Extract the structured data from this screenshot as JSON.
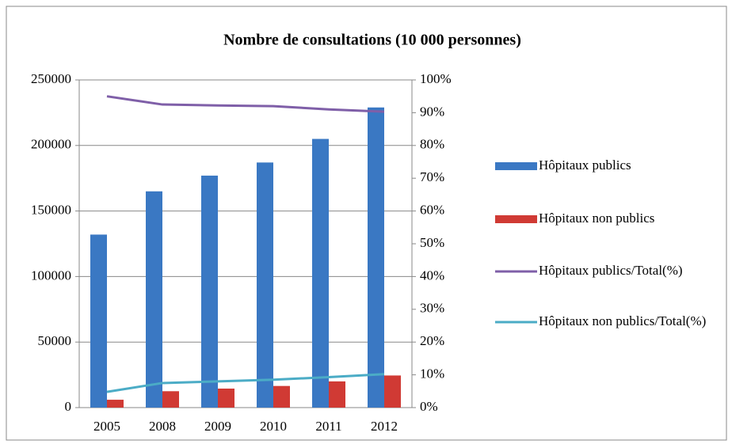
{
  "chart_data": {
    "type": "bar",
    "title": "Nombre de consultations (10 000 personnes)",
    "categories": [
      "2005",
      "2008",
      "2009",
      "2010",
      "2011",
      "2012"
    ],
    "series": [
      {
        "name": "Hôpitaux publics",
        "type": "bar",
        "color": "#3a78c3",
        "values": [
          132000,
          165000,
          177000,
          187000,
          205000,
          229000
        ]
      },
      {
        "name": "Hôpitaux non publics",
        "type": "bar",
        "color": "#d03a34",
        "values": [
          6000,
          12500,
          14500,
          16500,
          20000,
          24500
        ]
      },
      {
        "name": "Hôpitaux publics/Total(%)",
        "type": "line",
        "axis": "y2",
        "color": "#7f5fa8",
        "values": [
          95,
          92.5,
          92.2,
          92,
          91,
          90.3
        ]
      },
      {
        "name": "Hôpitaux non publics/Total(%)",
        "type": "line",
        "axis": "y2",
        "color": "#4bacc6",
        "values": [
          4.8,
          7.5,
          8,
          8.5,
          9.3,
          10.2
        ]
      }
    ],
    "ylim": [
      0,
      250000
    ],
    "yticks": [
      0,
      50000,
      100000,
      150000,
      200000,
      250000
    ],
    "y2lim": [
      0,
      100
    ],
    "y2ticks": [
      {
        "value": 0,
        "label": "0%"
      },
      {
        "value": 10,
        "label": "10%"
      },
      {
        "value": 20,
        "label": "20%"
      },
      {
        "value": 30,
        "label": "30%"
      },
      {
        "value": 40,
        "label": "40%"
      },
      {
        "value": 50,
        "label": "50%"
      },
      {
        "value": 60,
        "label": "60%"
      },
      {
        "value": 70,
        "label": "70%"
      },
      {
        "value": 80,
        "label": "80%"
      },
      {
        "value": 90,
        "label": "90%"
      },
      {
        "value": 100,
        "label": "100%"
      }
    ],
    "grid": true,
    "legend": "right"
  }
}
